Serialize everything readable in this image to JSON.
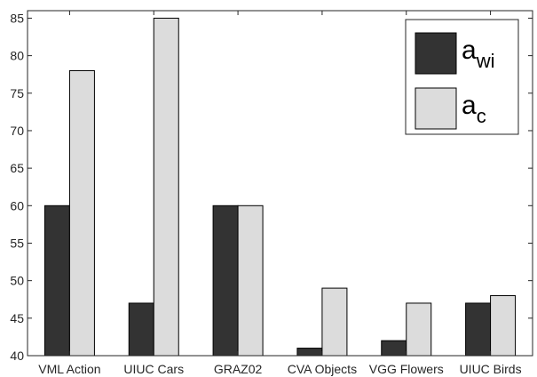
{
  "chart_data": {
    "type": "bar",
    "title": "",
    "xlabel": "",
    "ylabel": "",
    "categories": [
      "VML Action",
      "UIUC Cars",
      "GRAZ02",
      "CVA Objects",
      "VGG Flowers",
      "UIUC Birds"
    ],
    "series": [
      {
        "name": "a_wi",
        "base": "a",
        "sub": "wi",
        "color": "#333333",
        "values": [
          60,
          47,
          60,
          41,
          42,
          47
        ]
      },
      {
        "name": "a_c",
        "base": "a",
        "sub": "c",
        "color": "#dcdcdc",
        "values": [
          78,
          85,
          60,
          49,
          47,
          48
        ]
      }
    ],
    "ylim": [
      40,
      86
    ],
    "yticks": [
      40,
      45,
      50,
      55,
      60,
      65,
      70,
      75,
      80,
      85
    ],
    "grid": false,
    "legend_position": "top-right"
  }
}
